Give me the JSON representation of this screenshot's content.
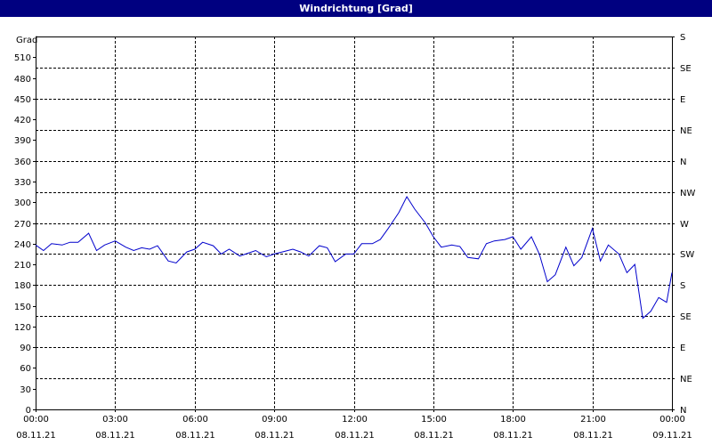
{
  "window": {
    "title": "Windrichtung [Grad]"
  },
  "chart_data": {
    "type": "line",
    "title": "Windrichtung [Grad]",
    "ylabel": "Grad",
    "ylim": [
      0,
      540
    ],
    "xlim": [
      0,
      24
    ],
    "grid": true,
    "line_color": "#0000cc",
    "y_ticks": [
      0,
      30,
      60,
      90,
      120,
      150,
      180,
      210,
      240,
      270,
      300,
      330,
      360,
      390,
      420,
      450,
      480,
      510
    ],
    "right_ticks": [
      {
        "v": 0,
        "label": "N"
      },
      {
        "v": 45,
        "label": "NE"
      },
      {
        "v": 90,
        "label": "E"
      },
      {
        "v": 135,
        "label": "SE"
      },
      {
        "v": 180,
        "label": "S"
      },
      {
        "v": 225,
        "label": "SW"
      },
      {
        "v": 270,
        "label": "W"
      },
      {
        "v": 315,
        "label": "NW"
      },
      {
        "v": 360,
        "label": "N"
      },
      {
        "v": 405,
        "label": "NE"
      },
      {
        "v": 450,
        "label": "E"
      },
      {
        "v": 495,
        "label": "SE"
      },
      {
        "v": 540,
        "label": "S"
      }
    ],
    "x_ticks": [
      {
        "h": 0,
        "time": "00:00",
        "date": "08.11.21"
      },
      {
        "h": 3,
        "time": "03:00",
        "date": "08.11.21"
      },
      {
        "h": 6,
        "time": "06:00",
        "date": "08.11.21"
      },
      {
        "h": 9,
        "time": "09:00",
        "date": "08.11.21"
      },
      {
        "h": 12,
        "time": "12:00",
        "date": "08.11.21"
      },
      {
        "h": 15,
        "time": "15:00",
        "date": "08.11.21"
      },
      {
        "h": 18,
        "time": "18:00",
        "date": "08.11.21"
      },
      {
        "h": 21,
        "time": "21:00",
        "date": "08.11.21"
      },
      {
        "h": 24,
        "time": "00:00",
        "date": "09.11.21"
      }
    ],
    "x": [
      0,
      0.3,
      0.6,
      1.0,
      1.3,
      1.6,
      2.0,
      2.3,
      2.6,
      3.0,
      3.4,
      3.7,
      4.0,
      4.3,
      4.6,
      5.0,
      5.3,
      5.7,
      6.0,
      6.3,
      6.7,
      7.0,
      7.3,
      7.7,
      8.0,
      8.3,
      8.7,
      9.0,
      9.3,
      9.7,
      10.0,
      10.3,
      10.7,
      11.0,
      11.3,
      11.7,
      12.0,
      12.3,
      12.7,
      13.0,
      13.3,
      13.7,
      14.0,
      14.3,
      14.7,
      15.0,
      15.3,
      15.7,
      16.0,
      16.3,
      16.7,
      17.0,
      17.3,
      17.7,
      18.0,
      18.3,
      18.7,
      19.0,
      19.3,
      19.6,
      20.0,
      20.3,
      20.6,
      21.0,
      21.3,
      21.6,
      22.0,
      22.3,
      22.6,
      22.9,
      23.2,
      23.5,
      23.8,
      24.0
    ],
    "values": [
      238,
      230,
      240,
      238,
      242,
      242,
      255,
      230,
      238,
      244,
      235,
      230,
      234,
      232,
      237,
      215,
      212,
      228,
      232,
      242,
      237,
      225,
      232,
      222,
      226,
      230,
      221,
      225,
      228,
      232,
      228,
      222,
      237,
      234,
      214,
      225,
      225,
      240,
      240,
      246,
      262,
      285,
      308,
      290,
      270,
      250,
      235,
      238,
      236,
      220,
      218,
      240,
      244,
      246,
      250,
      232,
      250,
      225,
      185,
      195,
      235,
      208,
      220,
      262,
      215,
      238,
      225,
      198,
      210,
      132,
      142,
      162,
      155,
      198
    ]
  }
}
